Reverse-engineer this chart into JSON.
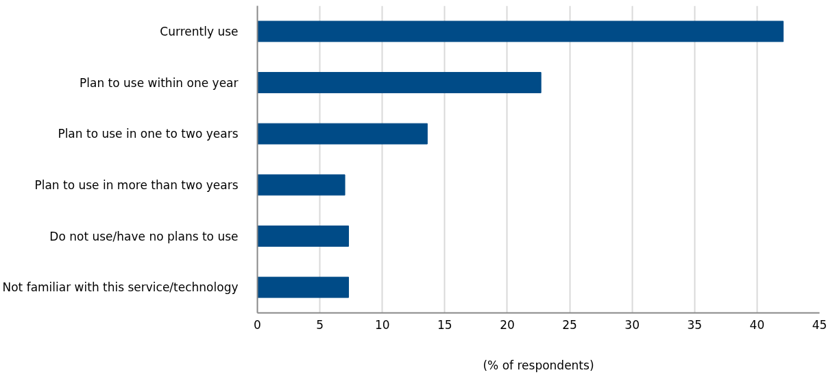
{
  "chart_data": {
    "type": "bar",
    "orientation": "horizontal",
    "xlabel": "(% of respondents)",
    "categories": [
      "Currently use",
      "Plan to use within one year",
      "Plan to use in one to two years",
      "Plan to use in more than two years",
      "Do not use/have no plans to use",
      "Not familiar with this service/technology"
    ],
    "values": [
      42.1,
      22.7,
      13.6,
      7.0,
      7.3,
      7.3
    ],
    "color": "#004b87",
    "xlim": [
      0,
      45
    ],
    "xticks": [
      0,
      5,
      10,
      15,
      20,
      25,
      30,
      35,
      40,
      45
    ],
    "grid": "x"
  }
}
